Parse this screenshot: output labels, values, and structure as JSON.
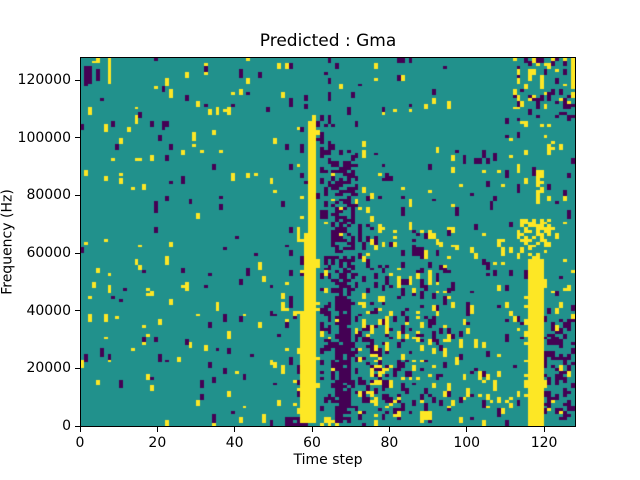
{
  "figure": {
    "background": "#ffffff",
    "frame_color": "#000000",
    "text_color": "#000000"
  },
  "chart_data": {
    "type": "heatmap",
    "title": "Predicted : Gma",
    "xlabel": "Time step",
    "ylabel": "Frequency (Hz)",
    "x_range": [
      0,
      128
    ],
    "y_range": [
      0,
      128000
    ],
    "x_ticks": [
      0,
      20,
      40,
      60,
      80,
      100,
      120
    ],
    "y_ticks": [
      0,
      20000,
      40000,
      60000,
      80000,
      100000,
      120000
    ],
    "grid": {
      "cols": 128,
      "rows": 128,
      "x_step": 1,
      "y_step_hz": 1000
    },
    "grid_lines": false,
    "legend": false,
    "colormap": {
      "name": "viridis-3level",
      "background_value": 1,
      "classes": [
        {
          "value": 0,
          "label": "low",
          "color": "#440154"
        },
        {
          "value": 1,
          "label": "mid",
          "color": "#21918c"
        },
        {
          "value": 2,
          "label": "high",
          "color": "#fde725"
        }
      ]
    },
    "noise_seed": 1337,
    "noise_regions": [
      {
        "t": [
          0,
          53
        ],
        "f": [
          64,
          128
        ],
        "py": 0.01,
        "pp": 0.012
      },
      {
        "t": [
          0,
          53
        ],
        "f": [
          0,
          64
        ],
        "py": 0.014,
        "pp": 0.011
      },
      {
        "t": [
          53,
          62
        ],
        "f": [
          4,
          70
        ],
        "py": 0.045,
        "pp": 0.05
      },
      {
        "t": [
          62,
          72
        ],
        "f": [
          0,
          70
        ],
        "py": 0.02,
        "pp": 0.0
      },
      {
        "t": [
          72,
          96
        ],
        "f": [
          0,
          70
        ],
        "py": 0.075,
        "pp": 0.1
      },
      {
        "t": [
          53,
          96
        ],
        "f": [
          70,
          128
        ],
        "py": 0.014,
        "pp": 0.022
      },
      {
        "t": [
          96,
          128
        ],
        "f": [
          0,
          64
        ],
        "py": 0.03,
        "pp": 0.025
      },
      {
        "t": [
          96,
          128
        ],
        "f": [
          64,
          108
        ],
        "py": 0.02,
        "pp": 0.02
      }
    ],
    "features": [
      {
        "class": 0,
        "t": [
          62,
          72
        ],
        "f": [
          5,
          95
        ],
        "p": 0.16
      },
      {
        "class": 0,
        "t": [
          66,
          70
        ],
        "f": [
          1,
          50
        ],
        "p": 0.75
      },
      {
        "class": 0,
        "t": [
          65,
          71
        ],
        "f": [
          50,
          92
        ],
        "p": 0.4
      },
      {
        "class": 0,
        "t": [
          61,
          66
        ],
        "f": [
          95,
          108
        ],
        "p": 0.2
      },
      {
        "class": 0,
        "t": [
          53,
          60
        ],
        "f": [
          0,
          3
        ],
        "p": 0.65
      },
      {
        "class": 2,
        "t": [
          62,
          67
        ],
        "f": [
          0,
          3
        ],
        "p": 0.55
      },
      {
        "class": 0,
        "t": [
          73,
          80
        ],
        "f": [
          8,
          30
        ],
        "p": 0.2
      },
      {
        "class": 2,
        "t": [
          75,
          78
        ],
        "f": [
          14,
          25
        ],
        "p": 0.5
      },
      {
        "class": 2,
        "t": [
          17,
          19
        ],
        "f": [
          44,
          48
        ],
        "p": 0.7
      },
      {
        "class": 2,
        "t": [
          57,
          61
        ],
        "f": [
          1,
          40
        ],
        "p": 1
      },
      {
        "class": 2,
        "t": [
          58,
          61
        ],
        "f": [
          40,
          67
        ],
        "p": 1
      },
      {
        "class": 2,
        "t": [
          59,
          61
        ],
        "f": [
          67,
          106
        ],
        "p": 1
      },
      {
        "class": 2,
        "t": [
          103,
          114
        ],
        "f": [
          4,
          18
        ],
        "p": 0.12
      },
      {
        "class": 2,
        "t": [
          116,
          120
        ],
        "f": [
          0,
          58
        ],
        "p": 1
      },
      {
        "class": 2,
        "t": [
          115,
          116
        ],
        "f": [
          10,
          45
        ],
        "p": 0.35
      },
      {
        "class": 2,
        "t": [
          114,
          122
        ],
        "f": [
          58,
          72
        ],
        "p": 0.4
      },
      {
        "class": 0,
        "t": [
          120,
          128
        ],
        "f": [
          2,
          38
        ],
        "p": 0.28
      },
      {
        "class": 2,
        "t": [
          118,
          120
        ],
        "f": [
          77,
          91
        ],
        "p": 0.6
      },
      {
        "class": 2,
        "t": [
          121,
          123
        ],
        "f": [
          94,
          100
        ],
        "p": 0.6
      },
      {
        "class": 2,
        "t": [
          112,
          128
        ],
        "f": [
          110,
          128
        ],
        "p": 0.13
      },
      {
        "class": 0,
        "t": [
          112,
          128
        ],
        "f": [
          106,
          128
        ],
        "p": 0.11
      },
      {
        "class": 0,
        "t": [
          1,
          3
        ],
        "f": [
          118,
          125
        ],
        "p": 0.8
      },
      {
        "class": 0,
        "t": [
          4,
          5
        ],
        "f": [
          120,
          124
        ],
        "p": 0.9
      },
      {
        "class": 2,
        "t": [
          7,
          8
        ],
        "f": [
          119,
          128
        ],
        "p": 1
      },
      {
        "class": 2,
        "t": [
          127,
          128
        ],
        "f": [
          117,
          128
        ],
        "p": 1
      }
    ]
  }
}
